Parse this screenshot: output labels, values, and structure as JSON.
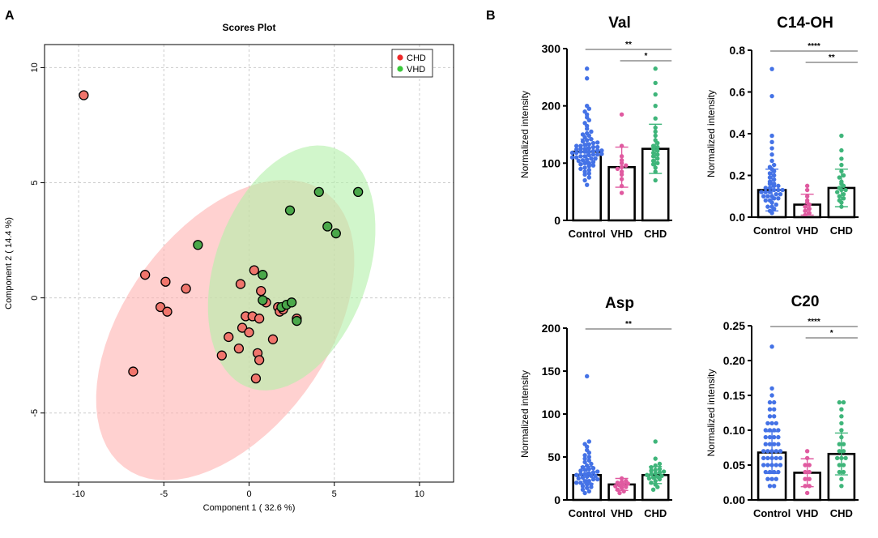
{
  "panels": {
    "a_label": "A",
    "b_label": "B"
  },
  "chart_data": [
    {
      "type": "scatter",
      "title": "Scores Plot",
      "xlabel": "Component 1 ( 32.6 %)",
      "ylabel": "Component 2 ( 14.4 %)",
      "xlim": [
        -12,
        12
      ],
      "ylim": [
        -8,
        11
      ],
      "xticks": [
        -10,
        -5,
        0,
        5,
        10
      ],
      "yticks": [
        -5,
        0,
        5,
        10
      ],
      "grid": true,
      "legend": {
        "position": "top-right",
        "entries": [
          "CHD",
          "VHD"
        ]
      },
      "series": [
        {
          "name": "CHD",
          "color": "#f0756c",
          "fill": "#ffb3b0",
          "points": [
            [
              -9.7,
              8.8
            ],
            [
              -6.8,
              -3.2
            ],
            [
              -6.1,
              1.0
            ],
            [
              -5.2,
              -0.4
            ],
            [
              -4.8,
              -0.6
            ],
            [
              -4.9,
              0.7
            ],
            [
              -3.7,
              0.4
            ],
            [
              -1.6,
              -2.5
            ],
            [
              -1.2,
              -1.7
            ],
            [
              -0.6,
              -2.2
            ],
            [
              -0.5,
              0.6
            ],
            [
              -0.4,
              -1.3
            ],
            [
              -0.2,
              -0.8
            ],
            [
              0.0,
              -1.5
            ],
            [
              0.2,
              -0.8
            ],
            [
              0.3,
              1.2
            ],
            [
              0.5,
              -2.4
            ],
            [
              0.6,
              -2.7
            ],
            [
              0.6,
              -0.9
            ],
            [
              0.7,
              0.3
            ],
            [
              0.4,
              -3.5
            ],
            [
              1.0,
              -0.2
            ],
            [
              1.4,
              -1.8
            ],
            [
              1.7,
              -0.4
            ],
            [
              1.8,
              -0.6
            ],
            [
              2.0,
              -0.5
            ],
            [
              2.8,
              -0.9
            ]
          ],
          "ellipse": {
            "cx": -1.4,
            "cy": -1.4,
            "rx": 8.6,
            "ry": 5.1,
            "angle": 36
          }
        },
        {
          "name": "VHD",
          "color": "#4aa84a",
          "fill": "#b3f0a8",
          "points": [
            [
              -3.0,
              2.3
            ],
            [
              0.8,
              1.0
            ],
            [
              0.8,
              -0.1
            ],
            [
              1.9,
              -0.4
            ],
            [
              2.2,
              -0.3
            ],
            [
              2.5,
              -0.2
            ],
            [
              2.8,
              -1.0
            ],
            [
              2.4,
              3.8
            ],
            [
              4.1,
              4.6
            ],
            [
              4.6,
              3.1
            ],
            [
              5.1,
              2.8
            ],
            [
              6.4,
              4.6
            ]
          ],
          "ellipse": {
            "cx": 2.5,
            "cy": 1.3,
            "rx": 5.9,
            "ry": 4.2,
            "angle": 52
          }
        }
      ]
    },
    {
      "type": "bar",
      "title": "Val",
      "ylabel": "Normalized intensity",
      "categories": [
        "Control",
        "VHD",
        "CHD"
      ],
      "ylim": [
        0,
        300
      ],
      "yticks": [
        "0",
        "100",
        "200",
        "300"
      ],
      "means": [
        120,
        93,
        125
      ],
      "sd": [
        22,
        35,
        43
      ],
      "colors": [
        "#4472e6",
        "#e05aa0",
        "#3fb57a"
      ],
      "points": [
        [
          62,
          70,
          75,
          80,
          82,
          85,
          88,
          90,
          92,
          95,
          96,
          98,
          100,
          100,
          102,
          104,
          105,
          106,
          108,
          108,
          110,
          110,
          112,
          112,
          114,
          115,
          115,
          116,
          118,
          118,
          120,
          120,
          120,
          121,
          122,
          122,
          124,
          125,
          125,
          126,
          128,
          128,
          130,
          130,
          132,
          133,
          135,
          136,
          138,
          140,
          142,
          145,
          148,
          150,
          152,
          155,
          160,
          165,
          170,
          175,
          180,
          185,
          190,
          195,
          200,
          248,
          265
        ],
        [
          48,
          60,
          72,
          80,
          85,
          90,
          93,
          96,
          100,
          105,
          112,
          130,
          185
        ],
        [
          70,
          85,
          92,
          98,
          100,
          104,
          108,
          112,
          115,
          118,
          122,
          125,
          128,
          130,
          135,
          140,
          148,
          155,
          162,
          178,
          200,
          220,
          240,
          265
        ]
      ],
      "sig": [
        {
          "from": 0,
          "to": 2,
          "label": "**"
        },
        {
          "from": 1,
          "to": 2,
          "label": "*"
        }
      ]
    },
    {
      "type": "bar",
      "title": "C14-OH",
      "ylabel": "Normalized intensity",
      "categories": [
        "Control",
        "VHD",
        "CHD"
      ],
      "ylim": [
        0,
        0.8
      ],
      "yticks": [
        "0.0",
        "0.2",
        "0.4",
        "0.6",
        "0.8"
      ],
      "means": [
        0.13,
        0.06,
        0.14
      ],
      "sd": [
        0.1,
        0.05,
        0.09
      ],
      "colors": [
        "#4472e6",
        "#e05aa0",
        "#3fb57a"
      ],
      "points": [
        [
          0.02,
          0.03,
          0.04,
          0.05,
          0.05,
          0.06,
          0.07,
          0.08,
          0.08,
          0.09,
          0.09,
          0.1,
          0.1,
          0.1,
          0.11,
          0.11,
          0.12,
          0.12,
          0.12,
          0.13,
          0.13,
          0.13,
          0.14,
          0.14,
          0.15,
          0.15,
          0.16,
          0.16,
          0.17,
          0.18,
          0.19,
          0.2,
          0.21,
          0.22,
          0.23,
          0.24,
          0.25,
          0.27,
          0.3,
          0.33,
          0.36,
          0.39,
          0.58,
          0.71
        ],
        [
          0.01,
          0.02,
          0.03,
          0.04,
          0.05,
          0.06,
          0.07,
          0.08,
          0.1,
          0.13,
          0.15
        ],
        [
          0.05,
          0.07,
          0.08,
          0.09,
          0.1,
          0.11,
          0.12,
          0.13,
          0.13,
          0.14,
          0.15,
          0.16,
          0.17,
          0.19,
          0.2,
          0.22,
          0.25,
          0.28,
          0.32,
          0.39
        ]
      ],
      "sig": [
        {
          "from": 0,
          "to": 2,
          "label": "****"
        },
        {
          "from": 1,
          "to": 2,
          "label": "**"
        }
      ]
    },
    {
      "type": "bar",
      "title": "Asp",
      "ylabel": "Normalized intensity",
      "categories": [
        "Control",
        "VHD",
        "CHD"
      ],
      "ylim": [
        0,
        200
      ],
      "yticks": [
        "0",
        "50",
        "100",
        "150",
        "200"
      ],
      "means": [
        29,
        18,
        29
      ],
      "sd": [
        10,
        7,
        10
      ],
      "colors": [
        "#4472e6",
        "#e05aa0",
        "#3fb57a"
      ],
      "points": [
        [
          8,
          10,
          12,
          14,
          15,
          16,
          18,
          18,
          20,
          20,
          22,
          22,
          24,
          24,
          25,
          26,
          27,
          28,
          28,
          29,
          30,
          30,
          31,
          32,
          33,
          34,
          35,
          36,
          37,
          38,
          40,
          42,
          44,
          46,
          48,
          50,
          52,
          55,
          58,
          62,
          65,
          68,
          144
        ],
        [
          8,
          10,
          12,
          14,
          15,
          16,
          17,
          18,
          19,
          20,
          21,
          22,
          25
        ],
        [
          12,
          15,
          18,
          20,
          22,
          24,
          25,
          26,
          27,
          28,
          29,
          30,
          31,
          32,
          33,
          34,
          35,
          36,
          38,
          40,
          42,
          48,
          68
        ]
      ],
      "sig": [
        {
          "from": 0,
          "to": 2,
          "label": "**"
        }
      ]
    },
    {
      "type": "bar",
      "title": "C20",
      "ylabel": "Normalized intensity",
      "categories": [
        "Control",
        "VHD",
        "CHD"
      ],
      "ylim": [
        0,
        0.25
      ],
      "yticks": [
        "0.00",
        "0.05",
        "0.10",
        "0.15",
        "0.20",
        "0.25"
      ],
      "means": [
        0.068,
        0.039,
        0.066
      ],
      "sd": [
        0.03,
        0.02,
        0.03
      ],
      "colors": [
        "#4472e6",
        "#e05aa0",
        "#3fb57a"
      ],
      "points": [
        [
          0.02,
          0.02,
          0.03,
          0.03,
          0.03,
          0.04,
          0.04,
          0.04,
          0.04,
          0.05,
          0.05,
          0.05,
          0.05,
          0.05,
          0.06,
          0.06,
          0.06,
          0.06,
          0.06,
          0.07,
          0.07,
          0.07,
          0.07,
          0.07,
          0.08,
          0.08,
          0.08,
          0.08,
          0.09,
          0.09,
          0.09,
          0.09,
          0.1,
          0.1,
          0.1,
          0.1,
          0.11,
          0.11,
          0.11,
          0.12,
          0.12,
          0.13,
          0.13,
          0.14,
          0.14,
          0.15,
          0.16,
          0.22
        ],
        [
          0.01,
          0.02,
          0.02,
          0.03,
          0.03,
          0.04,
          0.04,
          0.05,
          0.05,
          0.06,
          0.07
        ],
        [
          0.02,
          0.03,
          0.04,
          0.04,
          0.05,
          0.05,
          0.06,
          0.06,
          0.06,
          0.07,
          0.07,
          0.08,
          0.08,
          0.09,
          0.1,
          0.11,
          0.12,
          0.13,
          0.14,
          0.14
        ]
      ],
      "sig": [
        {
          "from": 0,
          "to": 2,
          "label": "****"
        },
        {
          "from": 1,
          "to": 2,
          "label": "*"
        }
      ]
    }
  ]
}
